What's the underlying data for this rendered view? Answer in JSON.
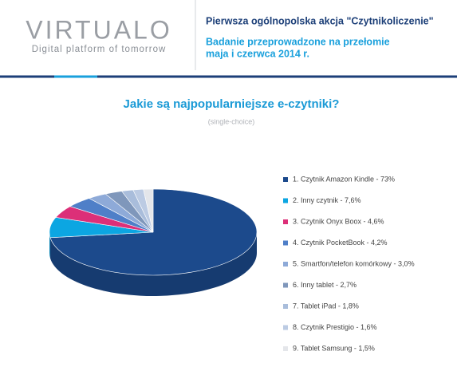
{
  "header": {
    "logo": "VIRTUALO",
    "tagline": "Digital platform of tomorrow",
    "headline": "Pierwsza ogólnopolska akcja \"Czytnikoliczenie\"",
    "subline": [
      "Badanie przeprowadzone na przełomie",
      "maja i czerwca 2014 r."
    ]
  },
  "chart_data": {
    "type": "pie3d",
    "title": "Jakie są najpopularniejsze e-czytniki?",
    "subtitle": "(single-choice)",
    "categories": [
      "1. Czytnik Amazon Kindle - 73%",
      "2. Inny czytnik - 7,6%",
      "3. Czytnik Onyx Boox - 4,6%",
      "4. Czytnik PocketBook - 4,2%",
      "5. Smartfon/telefon komórkowy - 3,0%",
      "6. Inny tablet - 2,7%",
      "7. Tablet iPad - 1,8%",
      "8. Czytnik Prestigio - 1,6%",
      "9. Tablet Samsung - 1,5%"
    ],
    "values": [
      73,
      7.6,
      4.6,
      4.2,
      3.0,
      2.7,
      1.8,
      1.6,
      1.5
    ],
    "colors": [
      "#1c4a8c",
      "#0ca6e2",
      "#dc2f78",
      "#4f7fc8",
      "#8eaad8",
      "#7f97bb",
      "#a9bddb",
      "#bccbe3",
      "#e4e6ea"
    ],
    "legend": "right"
  }
}
